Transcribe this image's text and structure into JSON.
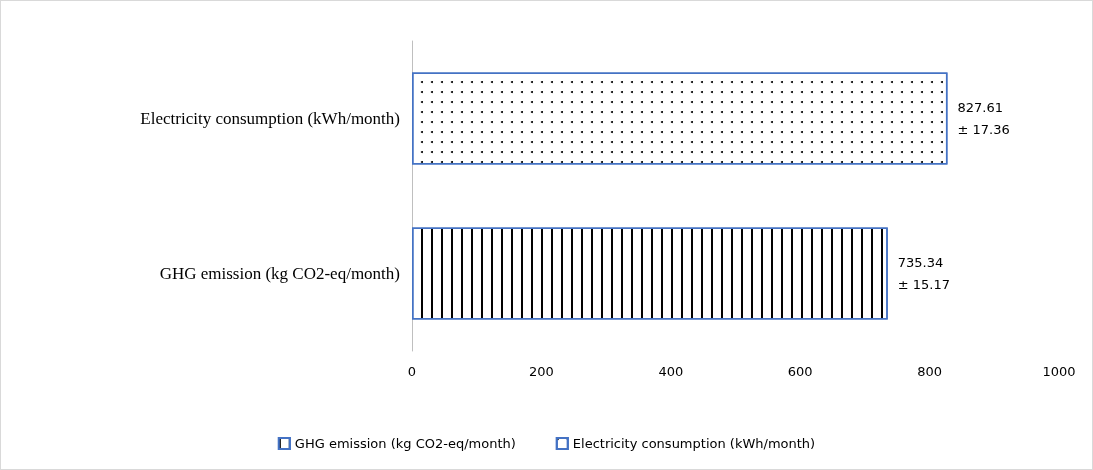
{
  "chart_data": {
    "type": "bar",
    "orientation": "horizontal",
    "categories": [
      "Electricity consumption (kWh/month)",
      "GHG emission (kg CO2-eq/month)"
    ],
    "series": [
      {
        "name": "GHG emission (kg CO2-eq/month)",
        "color": "#4472c4",
        "values": [
          null,
          735.34
        ],
        "value_labels": [
          null,
          "735.34 ± 15.17"
        ]
      },
      {
        "name": "Electricity consumption (kWh/month)",
        "color": "#4472c4",
        "values": [
          827.61,
          null
        ],
        "value_labels": [
          "827.61 ± 17.36",
          null
        ]
      }
    ],
    "xlim": [
      0,
      1000
    ],
    "xticks": [
      0,
      200,
      400,
      600,
      800,
      1000
    ],
    "grid": false,
    "legend": "bottom"
  }
}
